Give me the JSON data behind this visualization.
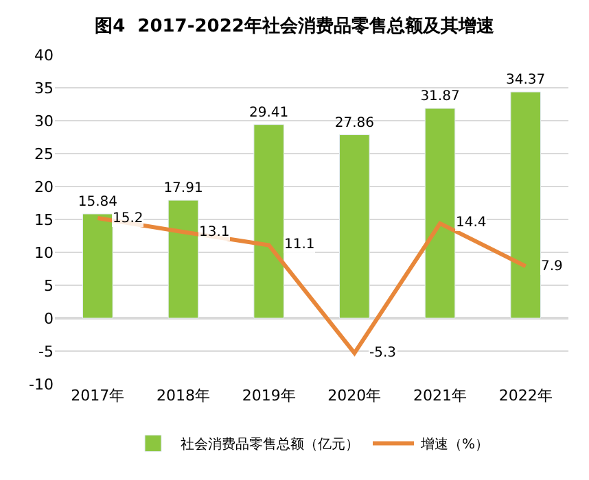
{
  "chart_data": {
    "type": "bar",
    "title": "图4  2017-2022年社会消费品零售总额及其增速",
    "categories": [
      "2017年",
      "2018年",
      "2019年",
      "2020年",
      "2021年",
      "2022年"
    ],
    "series": [
      {
        "name": "社会消费品零售总额（亿元）",
        "color": "#8cc63f",
        "values": [
          15.84,
          17.91,
          29.41,
          27.86,
          31.87,
          34.37
        ]
      },
      {
        "name": "增速（%）",
        "type": "line",
        "color": "#e8873a",
        "values": [
          15.2,
          13.1,
          11.1,
          -5.3,
          14.4,
          7.9
        ]
      }
    ],
    "ylim": [
      -10,
      40
    ],
    "yticks": [
      -10,
      -5,
      0,
      5,
      10,
      15,
      20,
      25,
      30,
      35,
      40
    ],
    "grid": "y",
    "legend": "bottom",
    "data_labels": true,
    "marker": "none",
    "line_style": "solid"
  }
}
